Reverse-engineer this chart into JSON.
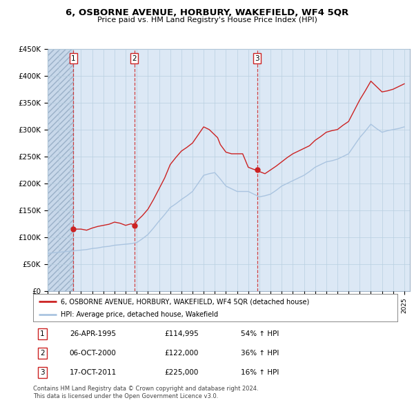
{
  "title": "6, OSBORNE AVENUE, HORBURY, WAKEFIELD, WF4 5QR",
  "subtitle": "Price paid vs. HM Land Registry's House Price Index (HPI)",
  "legend_line1": "6, OSBORNE AVENUE, HORBURY, WAKEFIELD, WF4 5QR (detached house)",
  "legend_line2": "HPI: Average price, detached house, Wakefield",
  "footnote1": "Contains HM Land Registry data © Crown copyright and database right 2024.",
  "footnote2": "This data is licensed under the Open Government Licence v3.0.",
  "transactions": [
    {
      "num": 1,
      "date": "26-APR-1995",
      "price": 114995,
      "hpi_pct": "54% ↑ HPI",
      "x_year": 1995.32
    },
    {
      "num": 2,
      "date": "06-OCT-2000",
      "price": 122000,
      "hpi_pct": "36% ↑ HPI",
      "x_year": 2000.77
    },
    {
      "num": 3,
      "date": "17-OCT-2011",
      "price": 225000,
      "hpi_pct": "16% ↑ HPI",
      "x_year": 2011.79
    }
  ],
  "hpi_color": "#aac4e0",
  "hpi_adjusted_color": "#cc2222",
  "dot_color": "#cc2222",
  "vline_color": "#cc2222",
  "plot_bg_color": "#dce8f5",
  "grid_color": "#b8cfe0",
  "ylim": [
    0,
    450000
  ],
  "xlim_start": 1993.0,
  "xlim_end": 2025.5,
  "hpi_line": {
    "x": [
      1993.0,
      1993.5,
      1994.0,
      1994.5,
      1995.0,
      1995.5,
      1996.0,
      1996.5,
      1997.0,
      1997.5,
      1998.0,
      1998.5,
      1999.0,
      1999.5,
      2000.0,
      2000.5,
      2001.0,
      2001.5,
      2002.0,
      2002.5,
      2003.0,
      2003.5,
      2004.0,
      2004.5,
      2005.0,
      2005.5,
      2006.0,
      2006.5,
      2007.0,
      2007.5,
      2008.0,
      2008.5,
      2009.0,
      2009.5,
      2010.0,
      2010.5,
      2011.0,
      2011.5,
      2012.0,
      2012.5,
      2013.0,
      2013.5,
      2014.0,
      2014.5,
      2015.0,
      2015.5,
      2016.0,
      2016.5,
      2017.0,
      2017.5,
      2018.0,
      2018.5,
      2019.0,
      2019.5,
      2020.0,
      2020.5,
      2021.0,
      2021.5,
      2022.0,
      2022.5,
      2023.0,
      2023.5,
      2024.0,
      2024.5,
      2025.0
    ],
    "y": [
      70000,
      71000,
      72000,
      73000,
      74000,
      75000,
      76000,
      77000,
      79000,
      80000,
      82000,
      83000,
      85000,
      86000,
      87000,
      88000,
      90000,
      97000,
      105000,
      117000,
      130000,
      142000,
      155000,
      162000,
      170000,
      177000,
      185000,
      200000,
      215000,
      218000,
      220000,
      208000,
      195000,
      190000,
      185000,
      185000,
      185000,
      180000,
      175000,
      177000,
      180000,
      187000,
      195000,
      200000,
      205000,
      210000,
      215000,
      222000,
      230000,
      235000,
      240000,
      242000,
      245000,
      250000,
      255000,
      270000,
      285000,
      297000,
      310000,
      302000,
      295000,
      298000,
      300000,
      302000,
      305000
    ]
  },
  "hpi_adjusted_line": {
    "x": [
      1995.32,
      1996.0,
      1996.5,
      1997.0,
      1997.5,
      1998.0,
      1998.5,
      1999.0,
      1999.5,
      2000.0,
      2000.5,
      2000.77,
      2001.0,
      2001.5,
      2002.0,
      2002.5,
      2003.0,
      2003.5,
      2004.0,
      2004.5,
      2005.0,
      2005.5,
      2006.0,
      2006.5,
      2007.0,
      2007.5,
      2008.0,
      2008.25,
      2008.5,
      2009.0,
      2009.5,
      2010.0,
      2010.5,
      2011.0,
      2011.5,
      2011.79,
      2012.0,
      2012.5,
      2013.0,
      2013.5,
      2014.0,
      2014.5,
      2015.0,
      2015.5,
      2016.0,
      2016.5,
      2017.0,
      2017.5,
      2018.0,
      2018.5,
      2019.0,
      2019.5,
      2020.0,
      2020.5,
      2021.0,
      2021.5,
      2022.0,
      2022.5,
      2023.0,
      2023.5,
      2024.0,
      2024.5,
      2025.0
    ],
    "y": [
      114995,
      115000,
      113000,
      117000,
      120000,
      122000,
      124000,
      128000,
      126000,
      122000,
      125000,
      122000,
      130000,
      140000,
      152000,
      170000,
      190000,
      210000,
      235000,
      248000,
      260000,
      267000,
      275000,
      290000,
      305000,
      300000,
      290000,
      285000,
      272000,
      258000,
      255000,
      255000,
      255000,
      230000,
      226000,
      225000,
      222000,
      218000,
      225000,
      232000,
      240000,
      248000,
      255000,
      260000,
      265000,
      270000,
      280000,
      287000,
      295000,
      298000,
      300000,
      308000,
      315000,
      335000,
      355000,
      372000,
      390000,
      380000,
      370000,
      372000,
      375000,
      380000,
      385000
    ]
  }
}
